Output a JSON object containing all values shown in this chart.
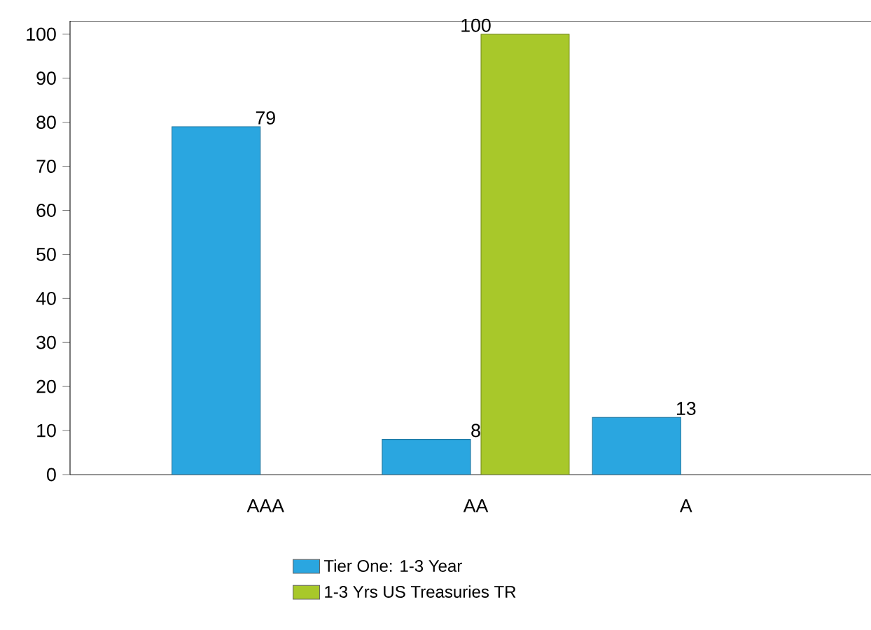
{
  "chart_data": {
    "type": "bar",
    "categories": [
      "AAA",
      "AA",
      "A"
    ],
    "series": [
      {
        "name": "Tier One: 1-3 Year",
        "color": "#2aa6e0",
        "values": [
          79,
          8,
          13
        ]
      },
      {
        "name": "1-3 Yrs US Treasuries TR",
        "color": "#a8c82a",
        "values": [
          null,
          100,
          null
        ]
      }
    ],
    "ylim": [
      0,
      103
    ],
    "yticks": [
      0,
      10,
      20,
      30,
      40,
      50,
      60,
      70,
      80,
      90,
      100
    ],
    "data_labels": true,
    "legend": "bottom",
    "grid": false
  }
}
